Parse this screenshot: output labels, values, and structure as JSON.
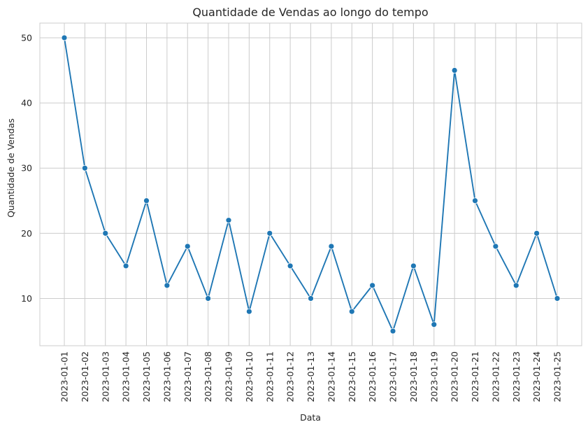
{
  "chart_data": {
    "type": "line",
    "title": "Quantidade de Vendas ao longo do tempo",
    "xlabel": "Data",
    "ylabel": "Quantidade de Vendas",
    "categories": [
      "2023-01-01",
      "2023-01-02",
      "2023-01-03",
      "2023-01-04",
      "2023-01-05",
      "2023-01-06",
      "2023-01-07",
      "2023-01-08",
      "2023-01-09",
      "2023-01-10",
      "2023-01-11",
      "2023-01-12",
      "2023-01-13",
      "2023-01-14",
      "2023-01-15",
      "2023-01-16",
      "2023-01-17",
      "2023-01-18",
      "2023-01-19",
      "2023-01-20",
      "2023-01-21",
      "2023-01-22",
      "2023-01-23",
      "2023-01-24",
      "2023-01-25"
    ],
    "series": [
      {
        "values": [
          50,
          30,
          20,
          15,
          25,
          12,
          18,
          10,
          22,
          8,
          20,
          15,
          10,
          18,
          8,
          12,
          5,
          15,
          6,
          45,
          25,
          18,
          12,
          20,
          10
        ]
      }
    ],
    "yticks": [
      10,
      20,
      30,
      40,
      50
    ],
    "ylim": [
      2.75,
      52.25
    ],
    "grid": true,
    "marker": "circle",
    "colors": {
      "line": "#1f77b4",
      "grid": "#cccccc",
      "frame": "#cccccc"
    }
  }
}
